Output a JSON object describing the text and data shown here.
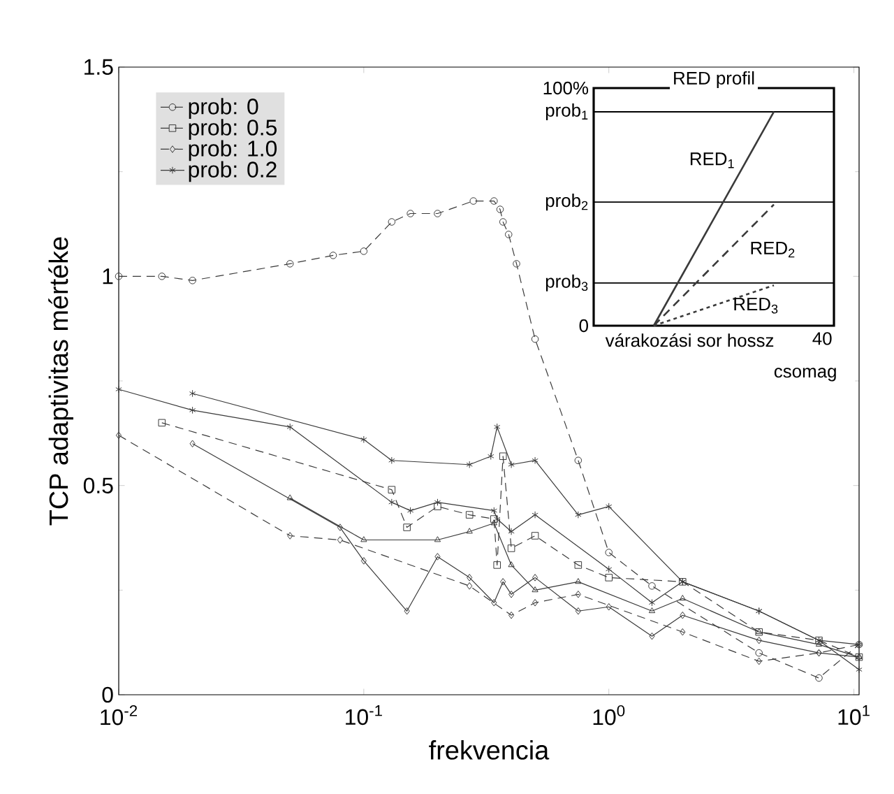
{
  "chart_data": [
    {
      "type": "line",
      "xlabel": "frekvencia",
      "ylabel": "TCP adaptivitas mértéke",
      "log": "x",
      "legend": "top left",
      "xlim": [
        0.01,
        10.5
      ],
      "ylim": [
        0,
        1.5
      ],
      "xticks": [
        {
          "value": 0.01,
          "label": "10$^{-2}$"
        },
        {
          "value": 0.1,
          "label": "10$^{-1}$"
        },
        {
          "value": 1,
          "label": "10$^{0}$"
        },
        {
          "value": 10,
          "label": "10$^{1}$"
        }
      ],
      "yticks": [
        0,
        0.5,
        1,
        1.5
      ],
      "series": [
        {
          "name": "prob: 0",
          "color": "#3a3a3a",
          "marker": "circle",
          "line_style": "dashed",
          "x": [
            0.01,
            0.015,
            0.02,
            0.05,
            0.075,
            0.1,
            0.13,
            0.155,
            0.2,
            0.28,
            0.34,
            0.36,
            0.37,
            0.39,
            0.42,
            0.5,
            0.75,
            1.0,
            1.5,
            4.1,
            7.2,
            10.5
          ],
          "values": [
            1.0,
            1.0,
            0.99,
            1.03,
            1.05,
            1.06,
            1.13,
            1.15,
            1.15,
            1.18,
            1.18,
            1.16,
            1.13,
            1.1,
            1.03,
            0.85,
            0.56,
            0.34,
            0.26,
            0.1,
            0.04,
            0.12
          ]
        },
        {
          "name": "prob: 0.5",
          "color": "#3a3a3a",
          "marker": "square",
          "line_style": "dashed",
          "x": [
            0.015,
            0.13,
            0.15,
            0.2,
            0.27,
            0.34,
            0.35,
            0.37,
            0.4,
            0.5,
            0.75,
            1.0,
            2.0,
            4.1,
            7.2,
            10.5
          ],
          "values": [
            0.65,
            0.49,
            0.4,
            0.45,
            0.43,
            0.42,
            0.31,
            0.57,
            0.35,
            0.38,
            0.31,
            0.28,
            0.27,
            0.15,
            0.13,
            0.09
          ]
        },
        {
          "name": "prob: 1.0",
          "color": "#3a3a3a",
          "marker": "diamond",
          "line_style": "dashed",
          "x": [
            0.01,
            0.05,
            0.08,
            0.27,
            0.4,
            0.5,
            0.75,
            2.0,
            4.1,
            7.2,
            10.5
          ],
          "values": [
            0.62,
            0.38,
            0.37,
            0.26,
            0.19,
            0.22,
            0.24,
            0.15,
            0.08,
            0.1,
            0.12
          ]
        },
        {
          "name": "prob: 0.2",
          "color": "#3a3a3a",
          "marker": "cross",
          "line_style": "solid",
          "x": [
            0.02,
            0.1,
            0.13,
            0.27,
            0.33,
            0.35,
            0.4,
            0.5,
            0.75,
            1.0,
            2.0,
            4.1,
            7.2,
            10.5
          ],
          "values": [
            0.72,
            0.61,
            0.56,
            0.55,
            0.57,
            0.64,
            0.55,
            0.56,
            0.43,
            0.45,
            0.27,
            0.2,
            0.13,
            0.06
          ]
        },
        {
          "color": "#3a3a3a",
          "marker": "cross",
          "line_style": "solid",
          "x": [
            0.01,
            0.02,
            0.05,
            0.13,
            0.155,
            0.2,
            0.34,
            0.35,
            0.4,
            0.5,
            1.0,
            1.5,
            2.0,
            4.1,
            7.2,
            10.5
          ],
          "values": [
            0.73,
            0.68,
            0.64,
            0.46,
            0.44,
            0.46,
            0.44,
            0.42,
            0.39,
            0.43,
            0.3,
            0.22,
            0.27,
            0.2,
            0.13,
            0.12
          ]
        },
        {
          "color": "#3a3a3a",
          "marker": "triangle",
          "line_style": "solid",
          "x": [
            0.05,
            0.1,
            0.2,
            0.27,
            0.34,
            0.4,
            0.5,
            0.75,
            1.5,
            2.0,
            4.1,
            7.2,
            10.5
          ],
          "values": [
            0.47,
            0.37,
            0.37,
            0.39,
            0.41,
            0.31,
            0.25,
            0.27,
            0.2,
            0.23,
            0.15,
            0.12,
            0.09
          ]
        },
        {
          "color": "#3a3a3a",
          "marker": "diamond",
          "line_style": "solid",
          "x": [
            0.02,
            0.08,
            0.1,
            0.15,
            0.2,
            0.27,
            0.34,
            0.37,
            0.4,
            0.5,
            0.75,
            1.0,
            1.5,
            2.0,
            4.1,
            7.2,
            10.5
          ],
          "values": [
            0.6,
            0.4,
            0.32,
            0.2,
            0.33,
            0.28,
            0.22,
            0.27,
            0.24,
            0.28,
            0.2,
            0.21,
            0.14,
            0.19,
            0.13,
            0.1,
            0.09
          ]
        }
      ]
    },
    {
      "type": "line",
      "title": "RED profil",
      "xlabel": "várakozási sor hossz",
      "annotations": [
        "40",
        "csomag"
      ],
      "categories": [
        null,
        null
      ],
      "ylim": [
        0,
        100
      ],
      "yticks": [
        {
          "value": 0,
          "label": "0"
        },
        {
          "value": 100,
          "label": "100%"
        }
      ],
      "ref_lines": [
        {
          "axis": "y",
          "value": 90,
          "label": "prob$_{1}$"
        },
        {
          "axis": "y",
          "value": 52,
          "label": "prob$_{2}$"
        },
        {
          "axis": "y",
          "value": 18,
          "label": "prob$_{3}$"
        }
      ],
      "marker": "none",
      "series": [
        {
          "name": "RED$_{1}$",
          "color": "#3a3a3a",
          "line_style": "solid",
          "values": [
            0,
            90
          ]
        },
        {
          "name": "RED$_{2}$",
          "color": "#3a3a3a",
          "line_style": "dashed",
          "values": [
            0,
            51
          ]
        },
        {
          "name": "RED$_{3}$",
          "color": "#3a3a3a",
          "line_style": "dotted",
          "values": [
            0,
            17
          ]
        }
      ]
    }
  ]
}
